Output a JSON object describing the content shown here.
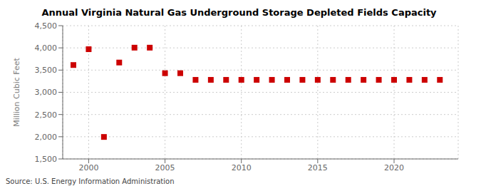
{
  "chart_data": {
    "type": "scatter",
    "title": "Annual Virginia Natural Gas Underground Storage Depleted Fields Capacity",
    "ylabel": "Million Cubic Feet",
    "annotations": [
      "Source: U.S. Energy Information Administration"
    ],
    "x": [
      1999,
      2000,
      2001,
      2002,
      2003,
      2004,
      2005,
      2006,
      2007,
      2008,
      2009,
      2010,
      2011,
      2012,
      2013,
      2014,
      2015,
      2016,
      2017,
      2018,
      2019,
      2020,
      2021,
      2022,
      2023
    ],
    "values": [
      3614,
      3970,
      1995,
      3670,
      4005,
      4005,
      3430,
      3430,
      3280,
      3280,
      3280,
      3280,
      3280,
      3280,
      3280,
      3280,
      3280,
      3280,
      3280,
      3280,
      3280,
      3280,
      3280,
      3280,
      3280
    ],
    "color": "#cc0000",
    "marker": "square",
    "xlim": [
      1998.3,
      2024.2
    ],
    "xticks": [
      2000,
      2005,
      2010,
      2015,
      2020
    ],
    "ylim": [
      1500,
      4500
    ],
    "yticks": [
      {
        "value": 1500,
        "label": "1,500"
      },
      {
        "value": 2000,
        "label": "2,000"
      },
      {
        "value": 2500,
        "label": "2,500"
      },
      {
        "value": 3000,
        "label": "3,000"
      },
      {
        "value": 3500,
        "label": "3,500"
      },
      {
        "value": 4000,
        "label": "4,000"
      },
      {
        "value": 4500,
        "label": "4,500"
      }
    ],
    "grid": true
  }
}
